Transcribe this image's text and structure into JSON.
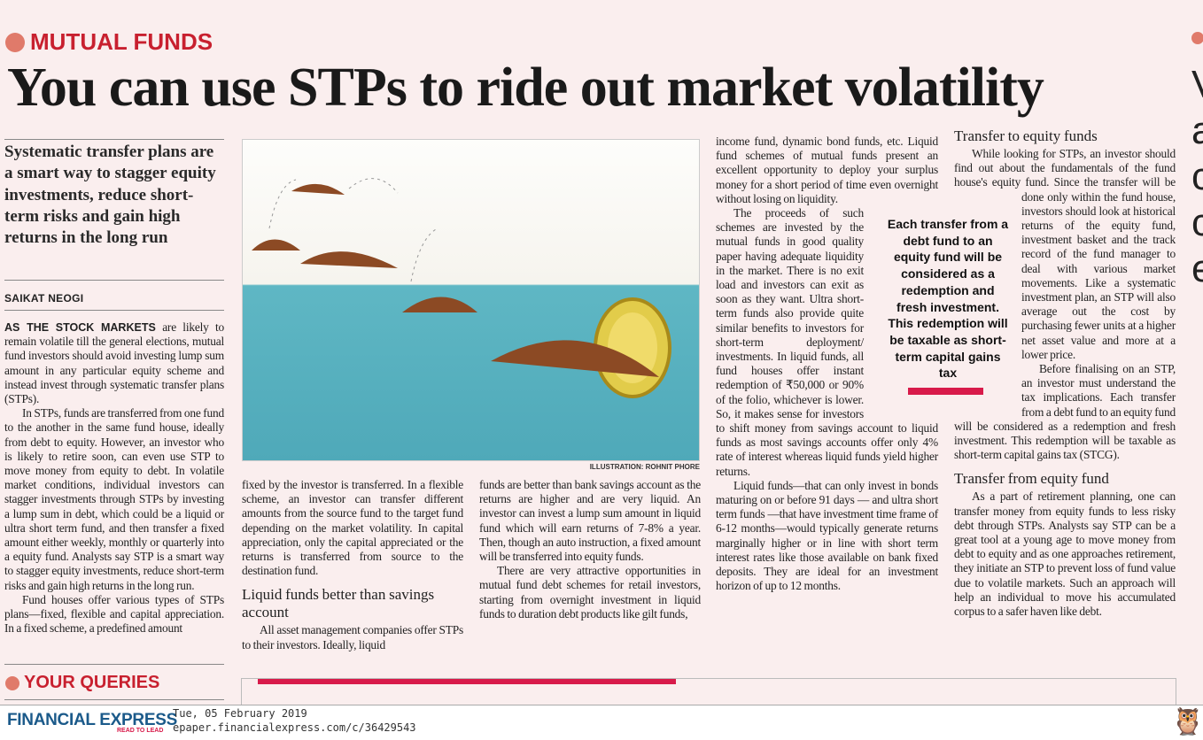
{
  "section": "MUTUAL FUNDS",
  "headline": "You can use STPs to ride out market volatility",
  "standfirst": "Systematic transfer plans are a smart way to stagger equity investments, reduce short-term risks and gain high returns in the long run",
  "byline": "SAIKAT NEOGI",
  "illustration_credit": "ILLUSTRATION: ROHNIT PHORE",
  "col1": {
    "lead": "AS THE STOCK MARKETS",
    "p1": " are likely to remain volatile till the general elections, mutual fund investors should avoid investing lump sum amount in any particular equity scheme and instead invest through systematic transfer plans (STPs).",
    "p2": "In STPs, funds are transferred from one fund to the another in the same fund house, ideally from debt to equity. However, an investor who is likely to retire soon, can even use STP to move money from equity to debt. In volatile market conditions, individual investors can stagger investments through STPs by investing a lump sum in debt, which could be a liquid or ultra short term fund, and then transfer a fixed amount either weekly, monthly or quarterly into a equity fund. Analysts say STP is a smart way to stagger equity investments, reduce short-term risks and gain high returns in the long run.",
    "p3": "Fund houses offer various types of STPs plans—fixed, flexible and capital appreciation. In a fixed scheme, a predefined amount"
  },
  "col2": {
    "p1": "fixed by the investor is transferred. In a flexible scheme, an investor can transfer different amounts from the source fund to the target fund depending on the market volatility. In capital appreciation, only the capital appreciated or the returns is transferred from source to the destination fund.",
    "subhead": "Liquid funds better than savings account",
    "p2": "All asset management companies offer STPs to their investors. Ideally, liquid"
  },
  "col3": {
    "p1": "funds are better than bank savings account as the returns are higher and are very liquid. An investor can invest a lump sum amount in liquid fund which will earn returns of 7-8% a year. Then, though an auto instruction, a fixed amount will be transferred into equity funds.",
    "p2": "There are very attractive opportunities in mutual fund debt schemes for retail investors, starting from overnight investment in liquid funds to duration debt products like gilt funds,"
  },
  "col4": {
    "p1": "income fund, dynamic bond funds, etc. Liquid fund schemes of mutual funds present an excellent opportunity to deploy your surplus money for a short period of time even overnight without losing on liquidity.",
    "p2": "The proceeds of such schemes are invested by the mutual funds in good quality paper having adequate liquidity in the market. There is no exit load and investors can exit as soon as they want. Ultra short-term funds also provide quite similar benefits to investors for short-term deployment/ investments. In liquid funds, all fund houses offer instant redemption of ₹50,000 or 90% of the folio, whichever is lower. So, it makes sense for investors to shift money from savings account to liquid funds as most savings accounts offer only 4% rate of interest whereas liquid funds yield higher returns.",
    "p3": "Liquid funds—that can only invest in bonds maturing on or before 91 days — and ultra short term funds —that have investment time frame of 6-12 months—would typically generate returns marginally higher or in line with short term interest rates like those available on bank fixed deposits. They are ideal for an investment horizon of up to 12 months."
  },
  "pullquote": "Each transfer from a debt fund to an equity fund will be considered as a redemption and fresh investment. This redemption will be taxable as short-term capital gains tax",
  "col5": {
    "subhead1": "Transfer to equity funds",
    "p1": "While looking for STPs, an investor should find out about the fundamentals of the fund house's equity fund. Since the transfer will be done only within the fund house, investors should look at historical returns of the equity fund, investment basket and the track record of the fund manager to deal with various market movements. Like a systematic investment plan, an STP will also average out the cost by purchasing fewer units at a higher net asset value and more at a lower price.",
    "p2": "Before finalising on an STP, an investor must understand the tax implications. Each transfer from a debt fund to an equity fund will be considered as a redemption and fresh investment. This redemption will be taxable as short-term capital gains tax (STCG).",
    "subhead2": "Transfer from equity fund",
    "p3": "As a part of retirement planning, one can transfer money from equity funds to less risky debt through STPs. Analysts say STP can be a great tool at a young age to move money from debt to equity and as one approaches retirement, they initiate an STP to prevent loss of fund value due to volatile markets. Such an approach will help an individual to move his accumulated corpus to a safer haven like debt."
  },
  "queries_section": "YOUR QUERIES",
  "footer": {
    "brand": "FINANCIAL EXPRESS",
    "tagline": "READ TO LEAD",
    "date": "Tue, 05 February 2019",
    "url": "epaper.financialexpress.com/c/36429543"
  },
  "colors": {
    "accent": "#c8202f",
    "bar": "#d81a4a",
    "brand": "#1b5a8a",
    "page": "#faeeee"
  }
}
